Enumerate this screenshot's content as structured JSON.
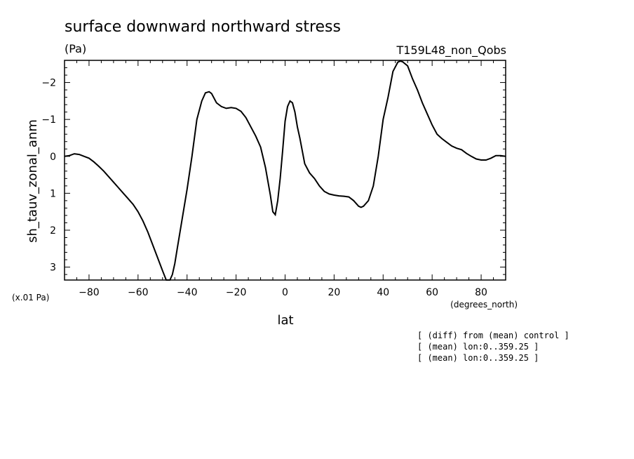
{
  "chart_data": {
    "type": "line",
    "title": "surface downward northward stress",
    "units_label": "(Pa)",
    "run_label": "T159L48_non_Qobs",
    "ylabel": "sh_tauv_zonal_anm",
    "xlabel": "lat",
    "x_units_label": "(degrees_north)",
    "y_scale_label": "(x.01 Pa)",
    "xlim": [
      -90,
      90
    ],
    "ylim": [
      3.35,
      -2.6
    ],
    "y_inverted": true,
    "x_ticks": [
      -80,
      -60,
      -40,
      -20,
      0,
      20,
      40,
      60,
      80
    ],
    "x_tick_labels": [
      "−80",
      "−60",
      "−40",
      "−20",
      "0",
      "20",
      "40",
      "60",
      "80"
    ],
    "y_ticks": [
      -2,
      -1,
      0,
      1,
      2,
      3
    ],
    "y_tick_labels": [
      "−2",
      "−1",
      "0",
      "1",
      "2",
      "3"
    ],
    "series": [
      {
        "x": [
          -90,
          -88,
          -86,
          -84,
          -82,
          -80,
          -78,
          -76,
          -74,
          -72,
          -70,
          -68,
          -66,
          -64,
          -62,
          -60,
          -58,
          -56,
          -54,
          -52,
          -50,
          -48.5,
          -47,
          -46,
          -45,
          -44,
          -42,
          -40,
          -38,
          -36,
          -34,
          -32.5,
          -31,
          -30,
          -28,
          -26,
          -24,
          -22,
          -20,
          -18,
          -16,
          -14,
          -12,
          -10,
          -8,
          -6,
          -5,
          -4,
          -3,
          -2,
          -1,
          0,
          1,
          2,
          3,
          4,
          5,
          6,
          8,
          10,
          12,
          14,
          16,
          18,
          20,
          22,
          24,
          26,
          28,
          30,
          31,
          32,
          34,
          36,
          38,
          40,
          42,
          44,
          46,
          47,
          48,
          50,
          52,
          54,
          56,
          58,
          60,
          62,
          64,
          66,
          68,
          70,
          72,
          74,
          76,
          78,
          80,
          82,
          84,
          86,
          88,
          90
        ],
        "y": [
          0.0,
          -0.02,
          -0.07,
          -0.05,
          0.0,
          0.05,
          0.15,
          0.27,
          0.4,
          0.55,
          0.7,
          0.85,
          1.0,
          1.15,
          1.3,
          1.5,
          1.75,
          2.05,
          2.4,
          2.75,
          3.1,
          3.35,
          3.35,
          3.2,
          2.9,
          2.5,
          1.7,
          0.9,
          0.0,
          -1.0,
          -1.5,
          -1.72,
          -1.75,
          -1.7,
          -1.45,
          -1.35,
          -1.3,
          -1.32,
          -1.3,
          -1.22,
          -1.05,
          -0.8,
          -0.55,
          -0.25,
          0.3,
          1.05,
          1.5,
          1.58,
          1.2,
          0.6,
          -0.15,
          -0.95,
          -1.35,
          -1.5,
          -1.45,
          -1.2,
          -0.8,
          -0.5,
          0.2,
          0.45,
          0.6,
          0.8,
          0.95,
          1.02,
          1.05,
          1.07,
          1.08,
          1.1,
          1.2,
          1.35,
          1.38,
          1.35,
          1.2,
          0.8,
          0.0,
          -1.0,
          -1.6,
          -2.3,
          -2.55,
          -2.58,
          -2.56,
          -2.45,
          -2.1,
          -1.8,
          -1.45,
          -1.15,
          -0.85,
          -0.6,
          -0.48,
          -0.38,
          -0.28,
          -0.22,
          -0.18,
          -0.08,
          0.0,
          0.07,
          0.1,
          0.1,
          0.05,
          -0.02,
          -0.02,
          0.0
        ]
      }
    ]
  },
  "notes": [
    "[ (diff) from (mean) control ]",
    "[ (mean) lon:0..359.25 ]",
    "[ (mean) lon:0..359.25 ]"
  ]
}
